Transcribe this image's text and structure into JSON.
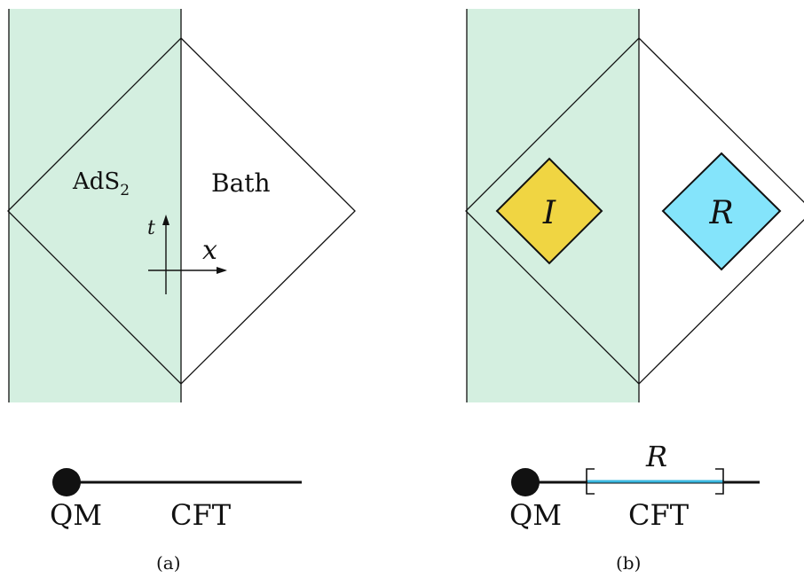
{
  "colors": {
    "ads_region": "#d4efe0",
    "island": "#f0d542",
    "radiation": "#84e4fb",
    "radiation_line": "#3bb8e0",
    "line": "#111111"
  },
  "panel_a": {
    "ads_label_base": "AdS",
    "ads_label_sub": "2",
    "bath_label": "Bath",
    "t_axis_label": "t",
    "x_axis_label": "x",
    "qm_label": "QM",
    "cft_label": "CFT",
    "caption": "(a)"
  },
  "panel_b": {
    "island_label": "I",
    "radiation_label": "R",
    "interval_label": "R",
    "qm_label": "QM",
    "cft_label": "CFT",
    "caption": "(b)"
  }
}
